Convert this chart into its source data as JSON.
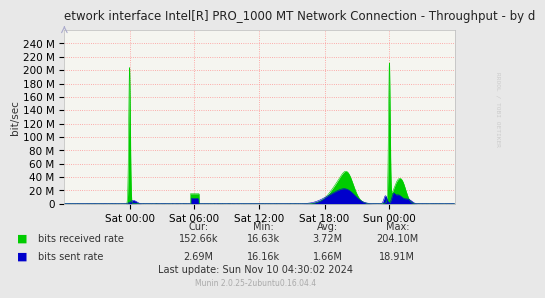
{
  "title": "etwork interface Intel[R] PRO_1000 MT Network Connection - Throughput - by d",
  "ylabel": "bit/sec",
  "background_color": "#e8e8e8",
  "plot_bg_color": "#f0f0f0",
  "grid_color": "#ff8888",
  "ytick_labels": [
    "0",
    "20 M",
    "40 M",
    "60 M",
    "80 M",
    "100 M",
    "120 M",
    "140 M",
    "160 M",
    "180 M",
    "200 M",
    "220 M",
    "240 M"
  ],
  "ytick_values": [
    0,
    20000000,
    40000000,
    60000000,
    80000000,
    100000000,
    120000000,
    140000000,
    160000000,
    180000000,
    200000000,
    220000000,
    240000000
  ],
  "ylim": [
    0,
    260000000
  ],
  "xtick_labels": [
    "Sat 00:00",
    "Sat 06:00",
    "Sat 12:00",
    "Sat 18:00",
    "Sun 00:00"
  ],
  "legend_entries": [
    "bits received rate",
    "bits sent rate"
  ],
  "legend_colors": [
    "#00cc00",
    "#0000cc"
  ],
  "stats_headers": [
    "Cur:",
    "Min:",
    "Avg:",
    "Max:"
  ],
  "stats_received": [
    "152.66k",
    "16.63k",
    "3.72M",
    "204.10M"
  ],
  "stats_sent": [
    "2.69M",
    "16.16k",
    "1.66M",
    "18.91M"
  ],
  "last_update": "Last update: Sun Nov 10 04:30:02 2024",
  "munin_version": "Munin 2.0.25-2ubuntu0.16.04.4",
  "watermark": "RROOL / TOBI OETIKER",
  "green_color": "#00cc00",
  "blue_color": "#0000cc",
  "axis_fontsize": 7.5,
  "label_fontsize": 7,
  "title_fontsize": 8.5
}
